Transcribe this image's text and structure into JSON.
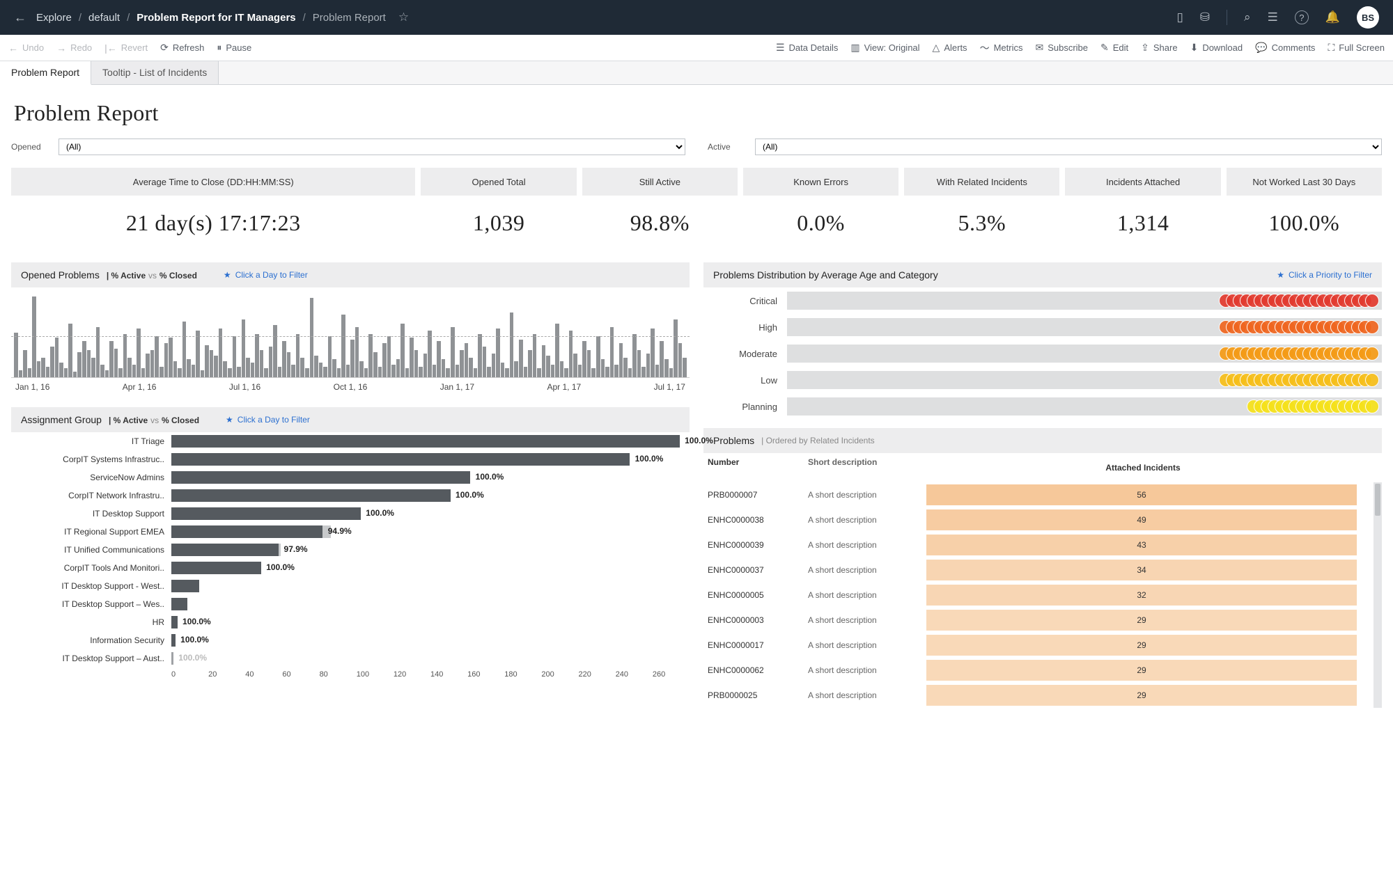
{
  "topbar": {
    "back_arrow": "←",
    "breadcrumbs": [
      "Explore",
      "default",
      "Problem Report for IT Managers",
      "Problem Report"
    ],
    "star_icon": "☆",
    "icons": {
      "device": "▯",
      "data": "⛁",
      "search": "⌕",
      "task": "☰",
      "help": "?",
      "bell": "🔔"
    },
    "avatar": "BS"
  },
  "toolbar2": {
    "left": [
      {
        "icon": "←",
        "label": "Undo",
        "dim": true
      },
      {
        "icon": "→",
        "label": "Redo",
        "dim": true
      },
      {
        "icon": "|←",
        "label": "Revert",
        "dim": true
      },
      {
        "icon": "⟳",
        "label": "Refresh",
        "dim": false
      },
      {
        "icon": "⏸",
        "label": "Pause",
        "dim": false
      }
    ],
    "right": [
      {
        "icon": "☰",
        "label": "Data Details"
      },
      {
        "icon": "▥",
        "label": "View: Original"
      },
      {
        "icon": "△",
        "label": "Alerts"
      },
      {
        "icon": "〜",
        "label": "Metrics"
      },
      {
        "icon": "✉",
        "label": "Subscribe"
      },
      {
        "icon": "✎",
        "label": "Edit"
      },
      {
        "icon": "⇪",
        "label": "Share"
      },
      {
        "icon": "⬇",
        "label": "Download"
      },
      {
        "icon": "💬",
        "label": "Comments"
      },
      {
        "icon": "⛶",
        "label": "Full Screen"
      }
    ]
  },
  "tabs": [
    {
      "label": "Problem Report",
      "active": true
    },
    {
      "label": "Tooltip - List of Incidents",
      "active": false
    }
  ],
  "page_title": "Problem Report",
  "filters": {
    "opened_label": "Opened",
    "opened_value": "(All)",
    "active_label": "Active",
    "active_value": "(All)"
  },
  "kpis": [
    {
      "wide": true,
      "label": "Average Time to Close (DD:HH:MM:SS)",
      "value": "21 day(s) 17:17:23"
    },
    {
      "label": "Opened Total",
      "value": "1,039"
    },
    {
      "label": "Still Active",
      "value": "98.8%"
    },
    {
      "label": "Known Errors",
      "value": "0.0%"
    },
    {
      "label": "With Related Incidents",
      "value": "5.3%"
    },
    {
      "label": "Incidents Attached",
      "value": "1,314"
    },
    {
      "label": "Not Worked Last 30 Days",
      "value": "100.0%"
    }
  ],
  "opened_panel": {
    "title": "Opened Problems",
    "subtitle_html": "| % Active vs % Closed",
    "hint": "Click a Day to Filter",
    "bar_color": "#8f9295",
    "axis_labels": [
      "Jan 1, 16",
      "Apr 1, 16",
      "Jul 1, 16",
      "Oct 1, 16",
      "Jan 1, 17",
      "Apr 1, 17",
      "Jul 1, 17"
    ],
    "bars_pct": [
      50,
      8,
      30,
      10,
      90,
      18,
      22,
      12,
      34,
      44,
      16,
      10,
      60,
      6,
      28,
      40,
      30,
      22,
      56,
      14,
      8,
      40,
      32,
      10,
      48,
      22,
      14,
      54,
      10,
      26,
      30,
      46,
      12,
      38,
      44,
      18,
      10,
      62,
      20,
      14,
      52,
      8,
      36,
      30,
      24,
      54,
      18,
      10,
      46,
      12,
      64,
      22,
      16,
      48,
      30,
      10,
      34,
      58,
      12,
      40,
      28,
      14,
      48,
      22,
      10,
      88,
      24,
      16,
      12,
      46,
      20,
      10,
      70,
      14,
      42,
      56,
      18,
      10,
      48,
      28,
      12,
      38,
      46,
      14,
      20,
      60,
      10,
      44,
      30,
      12,
      26,
      52,
      14,
      40,
      20,
      10,
      56,
      14,
      30,
      38,
      22,
      10,
      48,
      34,
      12,
      26,
      54,
      16,
      10,
      72,
      18,
      42,
      12,
      30,
      48,
      10,
      36,
      24,
      14,
      60,
      18,
      10,
      52,
      26,
      14,
      40,
      30,
      10,
      46,
      20,
      12,
      56,
      14,
      38,
      22,
      10,
      48,
      30,
      12,
      26,
      54,
      14,
      40,
      20,
      10,
      64,
      38,
      22
    ]
  },
  "assign_panel": {
    "title": "Assignment Group",
    "subtitle_html": "| % Active vs % Closed",
    "hint": "Click a Day to Filter",
    "bar_color": "#555a5f",
    "rows": [
      {
        "label": "IT Triage",
        "pct": 100,
        "value": "100.0%",
        "max": 255
      },
      {
        "label": "CorpIT Systems Infrastruc..",
        "pct": 100,
        "value": "100.0%",
        "max": 230
      },
      {
        "label": "ServiceNow Admins",
        "pct": 100,
        "value": "100.0%",
        "max": 150
      },
      {
        "label": "CorpIT Network Infrastru..",
        "pct": 100,
        "value": "100.0%",
        "max": 140
      },
      {
        "label": "IT Desktop Support",
        "pct": 100,
        "value": "100.0%",
        "max": 95
      },
      {
        "label": "IT Regional Support EMEA",
        "pct": 94.9,
        "value": "94.9%",
        "max": 80
      },
      {
        "label": "IT Unified Communications",
        "pct": 97.9,
        "value": "97.9%",
        "max": 55
      },
      {
        "label": "CorpIT Tools And Monitori..",
        "pct": 100,
        "value": "100.0%",
        "max": 45
      },
      {
        "label": "IT Desktop Support - West..",
        "pct": 100,
        "value": "",
        "max": 14
      },
      {
        "label": "IT Desktop Support – Wes..",
        "pct": 100,
        "value": "",
        "max": 8
      },
      {
        "label": "HR",
        "pct": 100,
        "value": "100.0%",
        "max": 3,
        "label_out": true
      },
      {
        "label": "Information Security",
        "pct": 100,
        "value": "100.0%",
        "max": 2,
        "label_out": true
      },
      {
        "label": "IT Desktop Support – Aust..",
        "pct": 100,
        "value": "100.0%",
        "max": 1,
        "label_out": true,
        "faded": true
      }
    ],
    "axis": {
      "min": 0,
      "max": 260,
      "step": 20
    }
  },
  "dist_panel": {
    "title": "Problems Distribution by Average Age and Category",
    "hint": "Click a Priority to Filter",
    "rows": [
      {
        "label": "Critical",
        "color": "#e33b2f",
        "n": 22,
        "bar_pct": 63
      },
      {
        "label": "High",
        "color": "#f0661f",
        "n": 22,
        "bar_pct": 67
      },
      {
        "label": "Moderate",
        "color": "#f59b16",
        "n": 22,
        "bar_pct": 68
      },
      {
        "label": "Low",
        "color": "#f7bf19",
        "n": 22,
        "bar_pct": 68
      },
      {
        "label": "Planning",
        "color": "#f6e21a",
        "n": 18,
        "bar_pct": 69
      }
    ],
    "bg": "#dedfe0"
  },
  "problems_table": {
    "title": "Problems",
    "subtitle": "| Ordered by Related Incidents",
    "columns": [
      "Number",
      "Short description",
      "Attached Incidents"
    ],
    "cell_color_base": "#f6c89a",
    "rows": [
      {
        "num": "PRB0000007",
        "desc": "A short description",
        "att": 56,
        "shade": 1.0
      },
      {
        "num": "ENHC0000038",
        "desc": "A short description",
        "att": 49,
        "shade": 0.92
      },
      {
        "num": "ENHC0000039",
        "desc": "A short description",
        "att": 43,
        "shade": 0.85
      },
      {
        "num": "ENHC0000037",
        "desc": "A short description",
        "att": 34,
        "shade": 0.76
      },
      {
        "num": "ENHC0000005",
        "desc": "A short description",
        "att": 32,
        "shade": 0.74
      },
      {
        "num": "ENHC0000003",
        "desc": "A short description",
        "att": 29,
        "shade": 0.7
      },
      {
        "num": "ENHC0000017",
        "desc": "A short description",
        "att": 29,
        "shade": 0.7
      },
      {
        "num": "ENHC0000062",
        "desc": "A short description",
        "att": 29,
        "shade": 0.7
      },
      {
        "num": "PRB0000025",
        "desc": "A short description",
        "att": 29,
        "shade": 0.7
      }
    ]
  }
}
